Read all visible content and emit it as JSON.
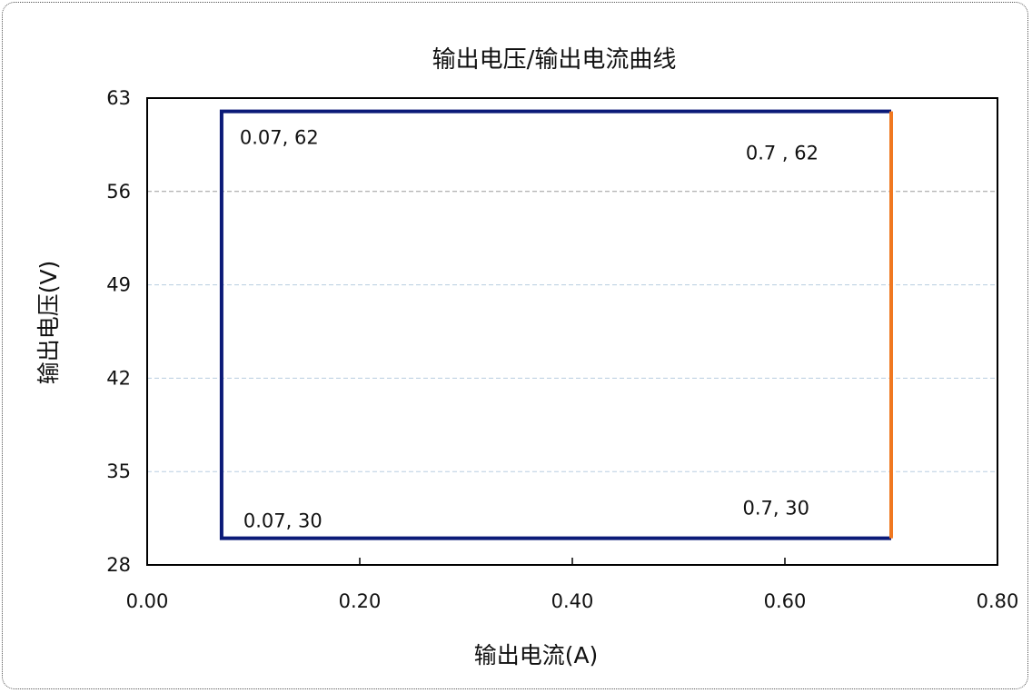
{
  "chart_data": {
    "type": "line",
    "title": "输出电压/输出电流曲线",
    "xlabel": "输出电流(A)",
    "ylabel": "输出电压(V)",
    "xlim": [
      0.0,
      0.8
    ],
    "ylim": [
      28,
      63
    ],
    "x_ticks": [
      "0.00",
      "0.20",
      "0.40",
      "0.60",
      "0.80"
    ],
    "y_ticks": [
      "28",
      "35",
      "42",
      "49",
      "56",
      "63"
    ],
    "grid": "horizontal dashed",
    "series": [
      {
        "color": "#0b1a78",
        "points": [
          [
            0.07,
            30
          ],
          [
            0.7,
            30
          ],
          [
            0.07,
            30
          ],
          [
            0.07,
            62
          ],
          [
            0.7,
            62
          ]
        ]
      },
      {
        "color": "#f07820",
        "points": [
          [
            0.7,
            62
          ],
          [
            0.7,
            30
          ]
        ]
      }
    ],
    "annotations": [
      {
        "text": "0.07, 62",
        "x": 0.07,
        "y": 62,
        "anchor": "below-right"
      },
      {
        "text": "0.7 , 62",
        "x": 0.7,
        "y": 62,
        "anchor": "below-left"
      },
      {
        "text": "0.07, 30",
        "x": 0.07,
        "y": 30,
        "anchor": "above-right"
      },
      {
        "text": "0.7, 30",
        "x": 0.7,
        "y": 30,
        "anchor": "above-left"
      }
    ]
  }
}
